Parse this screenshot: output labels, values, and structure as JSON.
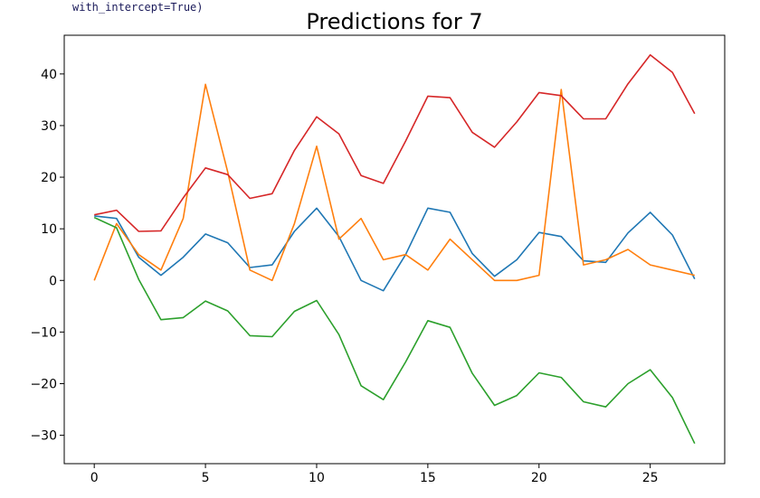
{
  "code_fragment": "with_intercept=True)",
  "chart_data": {
    "type": "line",
    "title": "Predictions for 7",
    "xlabel": "",
    "ylabel": "",
    "xlim": [
      -1.35,
      28.35
    ],
    "ylim": [
      -35.5,
      47.5
    ],
    "xticks": [
      0,
      5,
      10,
      15,
      20,
      25
    ],
    "yticks": [
      -30,
      -20,
      -10,
      0,
      10,
      20,
      30,
      40
    ],
    "grid": false,
    "x": [
      0,
      1,
      2,
      3,
      4,
      5,
      6,
      7,
      8,
      9,
      10,
      11,
      12,
      13,
      14,
      15,
      16,
      17,
      18,
      19,
      20,
      21,
      22,
      23,
      24,
      25,
      26,
      27
    ],
    "series": [
      {
        "color": "#1f77b4",
        "values": [
          12.5,
          12,
          4.5,
          1,
          4.5,
          9,
          7.3,
          2.5,
          3,
          9.5,
          14,
          8.5,
          0,
          -2,
          5,
          14,
          13.2,
          5.2,
          0.8,
          4,
          9.3,
          8.5,
          3.8,
          3.5,
          9.2,
          13.2,
          8.8,
          0.3
        ]
      },
      {
        "color": "#ff7f0e",
        "values": [
          0,
          11,
          5,
          2,
          12,
          38,
          21,
          2,
          0,
          11,
          26,
          8,
          12,
          4,
          5,
          2,
          8,
          4,
          0,
          0,
          1,
          37,
          3,
          4,
          6,
          3,
          2,
          1
        ]
      },
      {
        "color": "#2ca02c",
        "values": [
          12.2,
          10.2,
          0.2,
          -7.6,
          -7.2,
          -4,
          -5.9,
          -10.7,
          -10.9,
          -6,
          -3.9,
          -10.5,
          -20.4,
          -23.1,
          -15.8,
          -7.8,
          -9.1,
          -18,
          -24.2,
          -22.3,
          -17.9,
          -18.8,
          -23.5,
          -24.5,
          -20,
          -17.3,
          -22.7,
          -31.6
        ]
      },
      {
        "color": "#d62728",
        "values": [
          12.7,
          13.6,
          9.5,
          9.6,
          16,
          21.8,
          20.5,
          15.9,
          16.8,
          25.2,
          31.7,
          28.4,
          20.3,
          18.8,
          27,
          35.7,
          35.4,
          28.7,
          25.8,
          30.7,
          36.4,
          35.8,
          31.3,
          31.3,
          38.1,
          43.7,
          40.3,
          32.3
        ]
      }
    ]
  }
}
